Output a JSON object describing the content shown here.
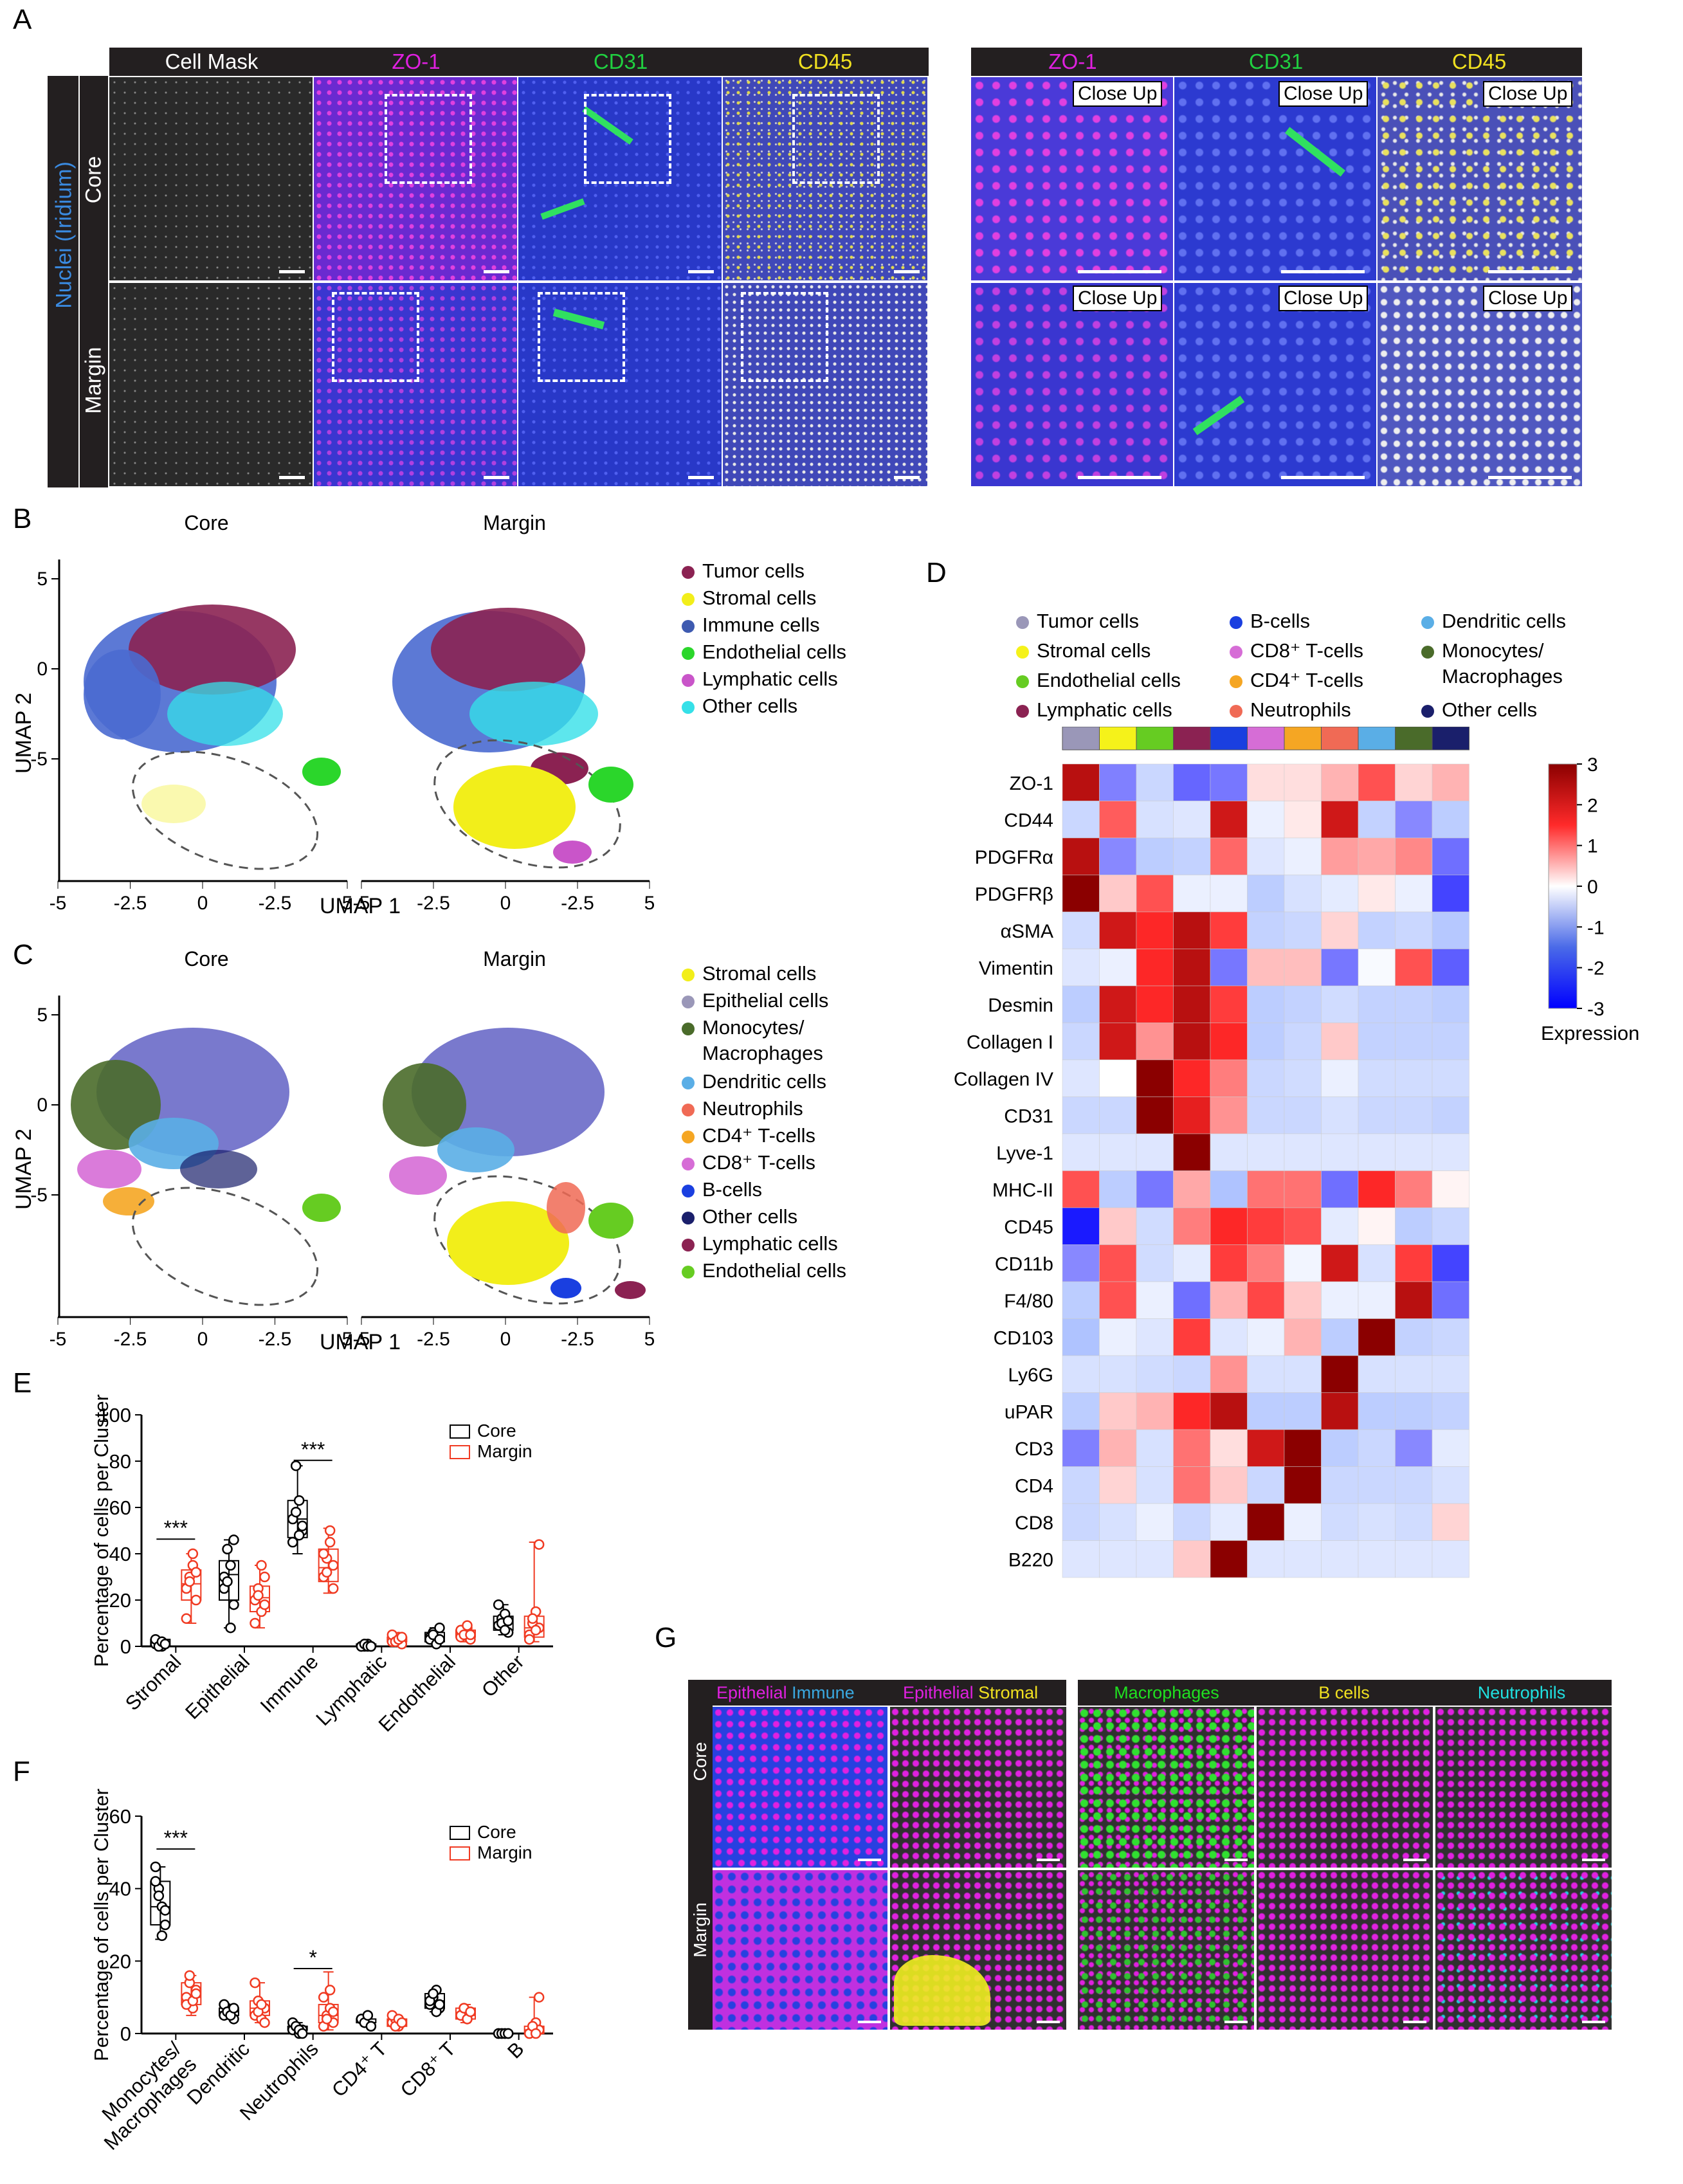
{
  "panelA": {
    "label": "A",
    "left_headers": [
      "Cell Mask",
      "ZO-1",
      "CD31",
      "CD45"
    ],
    "right_headers": [
      "ZO-1",
      "CD31",
      "CD45"
    ],
    "side_label": "Nuclei (Iridium)",
    "rows": [
      "Core",
      "Margin"
    ],
    "closeup": "Close Up",
    "colors": {
      "zo1": "#e020e0",
      "cd31": "#20d040",
      "cd45": "#f0e020",
      "nuclei": "#3a8ae0"
    }
  },
  "panelB": {
    "label": "B",
    "titles": [
      "Core",
      "Margin"
    ],
    "xlabel": "UMAP 1",
    "ylabel": "UMAP 2",
    "xticks": [
      "-5",
      "-2.5",
      "0",
      "-2.5",
      "5"
    ],
    "yticks": [
      "5",
      "0",
      "-5"
    ],
    "legend": [
      {
        "name": "Tumor cells",
        "color": "#8b2252"
      },
      {
        "name": "Stromal cells",
        "color": "#f2ee1a"
      },
      {
        "name": "Immune cells",
        "color": "#3e5ab0"
      },
      {
        "name": "Endothelial cells",
        "color": "#2bd62b"
      },
      {
        "name": "Lymphatic cells",
        "color": "#c955c9"
      },
      {
        "name": "Other cells",
        "color": "#35e0e8"
      }
    ]
  },
  "panelC": {
    "label": "C",
    "titles": [
      "Core",
      "Margin"
    ],
    "xlabel": "UMAP 1",
    "ylabel": "UMAP 2",
    "xticks": [
      "-5",
      "-2.5",
      "0",
      "-2.5",
      "5"
    ],
    "yticks": [
      "5",
      "0",
      "-5"
    ],
    "legend": [
      {
        "name": "Stromal cells",
        "color": "#f2ee1a"
      },
      {
        "name": "Epithelial cells",
        "color": "#9a97b8"
      },
      {
        "name": "Monocytes/",
        "color": "#4a6b2a"
      },
      {
        "name": "Macrophages",
        "color": ""
      },
      {
        "name": "Dendritic cells",
        "color": "#5aaee6"
      },
      {
        "name": "Neutrophils",
        "color": "#f06a55"
      },
      {
        "name": "CD4⁺ T-cells",
        "color": "#f5a623"
      },
      {
        "name": "CD8⁺ T-cells",
        "color": "#d66dd6"
      },
      {
        "name": "B-cells",
        "color": "#1a3fe0"
      },
      {
        "name": "Other cells",
        "color": "#1a1f6b"
      },
      {
        "name": "Lymphatic cells",
        "color": "#8b2252"
      },
      {
        "name": "Endothelial cells",
        "color": "#66cc22"
      }
    ]
  },
  "panelD": {
    "label": "D",
    "legend": [
      {
        "name": "Tumor cells",
        "color": "#9a97b8"
      },
      {
        "name": "Stromal cells",
        "color": "#f5f21a"
      },
      {
        "name": "Endothelial cells",
        "color": "#66cc22"
      },
      {
        "name": "Lymphatic cells",
        "color": "#8b2252"
      },
      {
        "name": "B-cells",
        "color": "#1a3fe0"
      },
      {
        "name": "CD8⁺ T-cells",
        "color": "#d66dd6"
      },
      {
        "name": "CD4⁺ T-cells",
        "color": "#f5a623"
      },
      {
        "name": "Neutrophils",
        "color": "#f06a55"
      },
      {
        "name": "Dendritic cells",
        "color": "#5aaee6"
      },
      {
        "name": "Monocytes/",
        "color": "#4a6b2a"
      },
      {
        "name": "Macrophages",
        "color": ""
      },
      {
        "name": "Other cells",
        "color": "#1a1f6b"
      }
    ],
    "colorbar_ticks": [
      "3",
      "2",
      "1",
      "0",
      "-1",
      "-2",
      "-3"
    ],
    "colorbar_title": "Expression"
  },
  "panelE": {
    "label": "E"
  },
  "panelF": {
    "label": "F"
  },
  "panelG": {
    "label": "G",
    "rows": [
      "Core",
      "Margin"
    ],
    "headers": [
      [
        {
          "t": "Epithelial",
          "c": "#e020e0"
        },
        {
          "t": "Immune",
          "c": "#3aa8e0"
        }
      ],
      [
        {
          "t": "Epithelial",
          "c": "#e020e0"
        },
        {
          "t": "Stromal",
          "c": "#f0e020"
        }
      ],
      [
        {
          "t": "Macrophages",
          "c": "#20e020"
        }
      ],
      [
        {
          "t": "B cells",
          "c": "#f0e020"
        }
      ],
      [
        {
          "t": "Neutrophils",
          "c": "#20e0e0"
        }
      ]
    ]
  },
  "chart_data": [
    {
      "type": "heatmap",
      "title": "",
      "rows": [
        "ZO-1",
        "CD44",
        "PDGFRα",
        "PDGFRβ",
        "αSMA",
        "Vimentin",
        "Desmin",
        "Collagen I",
        "Collagen IV",
        "CD31",
        "Lyve-1",
        "MHC-II",
        "CD45",
        "CD11b",
        "F4/80",
        "CD103",
        "Ly6G",
        "uPAR",
        "CD3",
        "CD4",
        "CD8",
        "B220"
      ],
      "columns": [
        "Tumor cells",
        "Stromal cells",
        "Endothelial cells",
        "Lymphatic cells",
        "B-cells",
        "CD8⁺ T-cells",
        "CD4⁺ T-cells",
        "Neutrophils",
        "Dendritic cells",
        "Monocytes/Macrophages",
        "Other cells"
      ],
      "values": [
        [
          2.6,
          -1.5,
          -0.8,
          -1.8,
          -1.6,
          0.3,
          0.3,
          0.7,
          1.6,
          0.4,
          0.7
        ],
        [
          -0.8,
          1.5,
          -0.6,
          -0.5,
          2.4,
          -0.3,
          0.2,
          2.4,
          -0.9,
          -1.4,
          -1.0
        ],
        [
          2.6,
          -1.4,
          -1.0,
          -0.9,
          1.4,
          -0.5,
          -0.3,
          0.9,
          0.8,
          1.1,
          -1.7
        ],
        [
          3.0,
          0.5,
          1.6,
          -0.3,
          -0.3,
          -1.0,
          -0.6,
          -0.4,
          0.2,
          -0.3,
          -2.2
        ],
        [
          -0.7,
          2.4,
          2.0,
          2.6,
          1.8,
          -0.9,
          -0.8,
          0.4,
          -0.9,
          -0.8,
          -1.1
        ],
        [
          -0.5,
          -0.3,
          2.0,
          2.6,
          -1.6,
          0.6,
          0.6,
          -1.6,
          -0.1,
          1.6,
          -1.9
        ],
        [
          -1.0,
          2.4,
          2.0,
          2.6,
          1.8,
          -1.0,
          -0.9,
          -0.7,
          -0.9,
          -0.9,
          -1.0
        ],
        [
          -0.8,
          2.4,
          1.0,
          2.6,
          2.0,
          -1.0,
          -0.8,
          0.5,
          -0.9,
          -0.9,
          -0.9
        ],
        [
          -0.5,
          0.0,
          3.0,
          2.0,
          1.2,
          -0.8,
          -0.7,
          -0.3,
          -0.7,
          -0.7,
          -0.7
        ],
        [
          -0.8,
          -0.8,
          3.0,
          2.2,
          1.0,
          -0.8,
          -0.8,
          -0.6,
          -0.8,
          -0.8,
          -0.9
        ],
        [
          -0.5,
          -0.5,
          -0.5,
          3.0,
          -0.5,
          -0.5,
          -0.5,
          -0.5,
          -0.5,
          -0.5,
          -0.5
        ],
        [
          1.6,
          -1.0,
          -1.6,
          0.8,
          -1.2,
          1.3,
          1.3,
          -1.7,
          2.0,
          1.2,
          0.1
        ],
        [
          -2.7,
          0.5,
          -0.7,
          1.2,
          2.0,
          1.8,
          1.6,
          -0.4,
          0.1,
          -1.0,
          -0.8
        ],
        [
          -1.4,
          1.6,
          -0.7,
          -0.4,
          1.8,
          1.2,
          -0.2,
          2.4,
          -0.6,
          1.8,
          -2.2
        ],
        [
          -1.0,
          1.6,
          -0.3,
          -1.7,
          0.7,
          1.7,
          0.5,
          -0.3,
          -0.3,
          2.6,
          -1.7
        ],
        [
          -1.2,
          -0.3,
          -0.5,
          1.8,
          -0.5,
          -0.3,
          0.7,
          -1.0,
          3.0,
          -0.9,
          -0.8
        ],
        [
          -0.6,
          -0.6,
          -0.7,
          -0.8,
          1.0,
          -0.6,
          -0.6,
          3.0,
          -0.6,
          -0.6,
          -0.6
        ],
        [
          -1.0,
          0.5,
          0.7,
          2.0,
          2.6,
          -1.0,
          -1.0,
          2.6,
          -1.0,
          -1.0,
          -0.9
        ],
        [
          -1.5,
          0.7,
          -0.6,
          1.3,
          0.3,
          2.4,
          3.0,
          -1.0,
          -0.8,
          -1.4,
          -0.4
        ],
        [
          -0.8,
          0.4,
          -0.6,
          1.3,
          0.5,
          -0.8,
          3.0,
          -0.8,
          -0.8,
          -0.8,
          -0.6
        ],
        [
          -0.8,
          -0.6,
          -0.3,
          -0.8,
          -0.4,
          3.0,
          -0.3,
          -0.7,
          -0.6,
          -0.7,
          0.4
        ],
        [
          -0.5,
          -0.5,
          -0.5,
          0.5,
          3.0,
          -0.5,
          -0.5,
          -0.5,
          -0.5,
          -0.5,
          -0.5
        ]
      ],
      "range": [
        -3,
        3
      ]
    },
    {
      "type": "box",
      "title": "",
      "ylabel": "Percentage of cells per Cluster",
      "ylim": [
        0,
        100
      ],
      "yticks": [
        0,
        20,
        40,
        60,
        80,
        100
      ],
      "categories": [
        "Stromal",
        "Epithelial",
        "Immune",
        "Lymphatic",
        "Endothelial",
        "Other"
      ],
      "legend": [
        "Core",
        "Margin"
      ],
      "series": [
        {
          "name": "Core",
          "color": "#000000",
          "points": [
            [
              1,
              2,
              0,
              1,
              3,
              0,
              2,
              1
            ],
            [
              30,
              42,
              35,
              18,
              25,
              28,
              8,
              46
            ],
            [
              55,
              78,
              63,
              50,
              45,
              58,
              48,
              52
            ],
            [
              0,
              0,
              1,
              0,
              0,
              1,
              0,
              0
            ],
            [
              4,
              6,
              2,
              8,
              3,
              5,
              1,
              3
            ],
            [
              9,
              12,
              14,
              6,
              18,
              10,
              7,
              11
            ]
          ],
          "box": [
            [
              0,
              0,
              1,
              3,
              3
            ],
            [
              8,
              20,
              31,
              37,
              46
            ],
            [
              40,
              47,
              55,
              63,
              78
            ],
            [
              0,
              0,
              0,
              1,
              1
            ],
            [
              1,
              2,
              4,
              6,
              8
            ],
            [
              5,
              7,
              10,
              13,
              18
            ]
          ]
        },
        {
          "name": "Margin",
          "color": "#f03a22",
          "points": [
            [
              25,
              30,
              35,
              20,
              12,
              28,
              40,
              32
            ],
            [
              20,
              25,
              15,
              30,
              10,
              22,
              35,
              18
            ],
            [
              30,
              38,
              45,
              25,
              40,
              32,
              50,
              35
            ],
            [
              2,
              3,
              4,
              1,
              5,
              2,
              3,
              4
            ],
            [
              4,
              6,
              8,
              3,
              7,
              5,
              9,
              5
            ],
            [
              5,
              10,
              15,
              8,
              3,
              12,
              7,
              44
            ]
          ],
          "box": [
            [
              10,
              20,
              27,
              33,
              40
            ],
            [
              8,
              15,
              21,
              26,
              35
            ],
            [
              23,
              28,
              34,
              42,
              51
            ],
            [
              1,
              2,
              3,
              4,
              5
            ],
            [
              2,
              4,
              5,
              7,
              9
            ],
            [
              2,
              4,
              8,
              13,
              45
            ]
          ]
        }
      ],
      "annotations": [
        {
          "text": "***",
          "category": "Stromal",
          "y": 48
        },
        {
          "text": "***",
          "category": "Immune",
          "y": 82
        }
      ]
    },
    {
      "type": "box",
      "title": "",
      "ylabel": "Percentage of cells per Cluster",
      "ylim": [
        0,
        60
      ],
      "yticks": [
        0,
        20,
        40,
        60
      ],
      "categories": [
        "Monocytes/\nMacrophages",
        "Dendritic",
        "Neutrophils",
        "CD4⁺ T",
        "CD8⁺ T",
        "B"
      ],
      "legend": [
        "Core",
        "Margin"
      ],
      "series": [
        {
          "name": "Core",
          "color": "#000000",
          "points": [
            [
              46,
              40,
              35,
              30,
              42,
              38,
              27,
              34
            ],
            [
              5,
              7,
              6,
              4,
              8,
              6,
              5,
              7
            ],
            [
              1,
              2,
              0,
              1,
              3,
              2,
              1,
              0
            ],
            [
              4,
              3,
              5,
              2,
              4,
              3,
              5,
              2
            ],
            [
              8,
              10,
              12,
              7,
              9,
              11,
              6,
              8
            ],
            [
              0,
              0,
              0,
              0,
              0,
              0,
              0,
              0
            ]
          ],
          "box": [
            [
              26,
              30,
              35,
              42,
              46
            ],
            [
              4,
              5,
              6,
              7,
              8
            ],
            [
              0,
              1,
              1,
              2,
              3
            ],
            [
              2,
              3,
              3,
              4,
              5
            ],
            [
              6,
              7,
              9,
              11,
              12
            ],
            [
              0,
              0,
              0,
              0,
              0
            ]
          ]
        },
        {
          "name": "Margin",
          "color": "#f03a22",
          "points": [
            [
              10,
              14,
              7,
              12,
              8,
              16,
              9,
              11
            ],
            [
              5,
              9,
              4,
              7,
              14,
              6,
              8,
              3
            ],
            [
              2,
              5,
              7,
              3,
              10,
              4,
              12,
              6
            ],
            [
              3,
              4,
              2,
              3,
              5,
              2,
              4,
              3
            ],
            [
              5,
              7,
              4,
              6,
              5,
              7,
              4,
              6
            ],
            [
              0,
              1,
              3,
              1,
              0,
              2,
              0,
              10
            ]
          ],
          "box": [
            [
              5,
              8,
              10,
              14,
              16
            ],
            [
              3,
              5,
              7,
              9,
              14
            ],
            [
              1,
              3,
              5,
              8,
              17
            ],
            [
              1,
              2,
              3,
              4,
              5
            ],
            [
              3,
              4,
              5,
              7,
              8
            ],
            [
              0,
              0,
              1,
              2,
              10
            ]
          ]
        }
      ],
      "annotations": [
        {
          "text": "***",
          "category": "Monocytes/\nMacrophages",
          "y": 52
        },
        {
          "text": "*",
          "category": "Neutrophils",
          "y": 19
        }
      ]
    }
  ]
}
